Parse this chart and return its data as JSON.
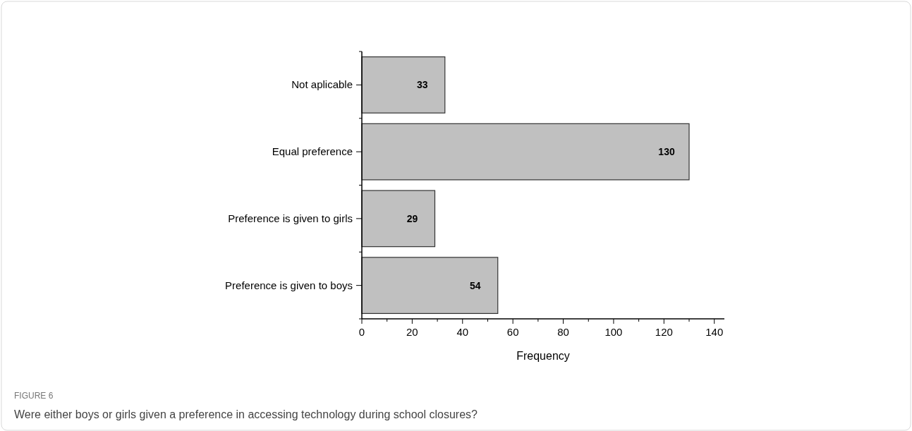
{
  "chart_data": {
    "type": "bar",
    "orientation": "horizontal",
    "categories": [
      "Not aplicable",
      "Equal preference",
      "Preference is given to girls",
      "Preference is given to boys"
    ],
    "values": [
      33,
      130,
      29,
      54
    ],
    "color": "#c0c0c0",
    "data_labels": true,
    "xlabel": "Frequency",
    "xlim": [
      0,
      144
    ],
    "xticks": [
      0,
      20,
      40,
      60,
      80,
      100,
      120,
      140
    ],
    "grid": false,
    "annotations": [
      "FIGURE 6",
      "Were either boys or girls given a preference in accessing technology during school closures?"
    ]
  }
}
